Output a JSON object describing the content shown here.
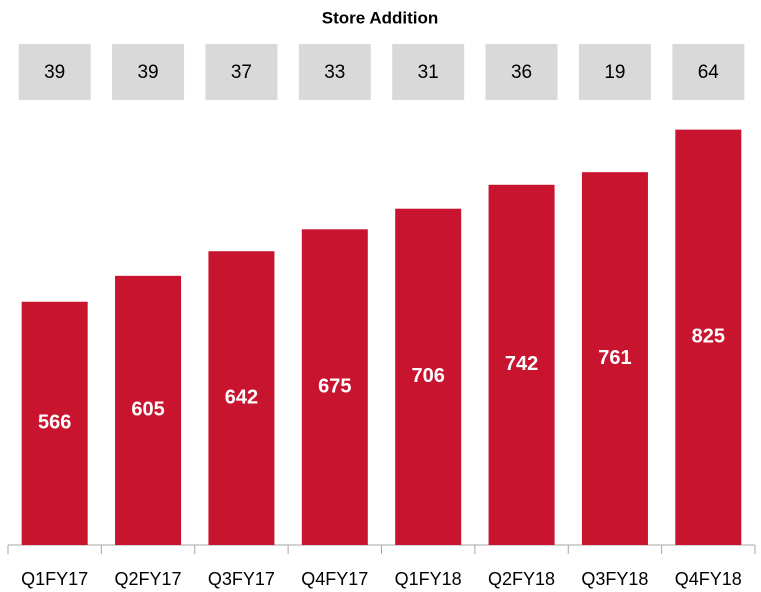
{
  "chart_data": {
    "type": "bar",
    "title": "Store Addition",
    "store_additions": [
      39,
      39,
      37,
      33,
      31,
      36,
      19,
      64
    ],
    "categories": [
      "Q1FY17",
      "Q2FY17",
      "Q3FY17",
      "Q4FY17",
      "Q1FY18",
      "Q2FY18",
      "Q3FY18",
      "Q4FY18"
    ],
    "values": [
      566,
      605,
      642,
      675,
      706,
      742,
      761,
      825
    ],
    "color": "#c8142f",
    "ylim": [
      200,
      850
    ]
  }
}
